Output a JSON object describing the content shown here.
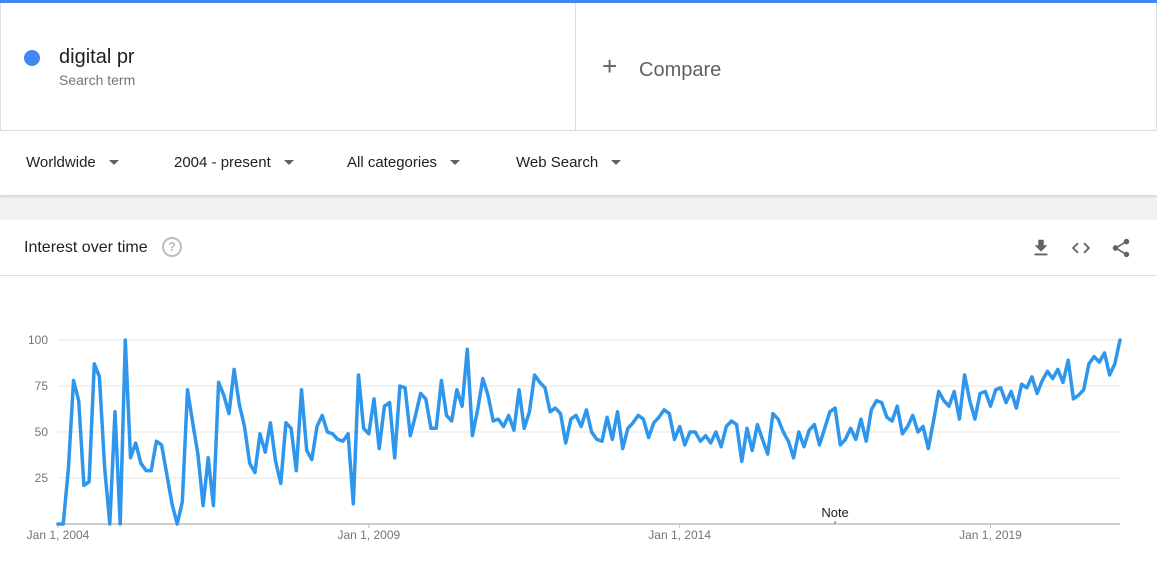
{
  "search_term": {
    "name": "digital pr",
    "type_label": "Search term",
    "color": "#4285f4"
  },
  "compare": {
    "label": "Compare",
    "icon": "plus-icon"
  },
  "filters": {
    "region": "Worldwide",
    "time": "2004 - present",
    "category": "All categories",
    "property": "Web Search"
  },
  "card": {
    "title": "Interest over time",
    "help_icon": "help-icon",
    "actions": [
      "download-icon",
      "embed-icon",
      "share-icon"
    ]
  },
  "chart_data": {
    "type": "line",
    "title": "Interest over time",
    "xlabel": "",
    "ylabel": "",
    "ylim": [
      0,
      100
    ],
    "yticks": [
      25,
      50,
      75,
      100
    ],
    "grid": true,
    "note_label": "Note",
    "note_date": "2016.5",
    "xticks": [
      {
        "label": "Jan 1, 2004",
        "value": 2004
      },
      {
        "label": "Jan 1, 2009",
        "value": 2009
      },
      {
        "label": "Jan 1, 2014",
        "value": 2014
      },
      {
        "label": "Jan 1, 2019",
        "value": 2019
      }
    ],
    "x_start": "2004-01",
    "x_step": "month",
    "series": [
      {
        "name": "digital pr",
        "color": "#2e96ec",
        "values": [
          0,
          0,
          30,
          78,
          67,
          21,
          23,
          87,
          80,
          31,
          0,
          61,
          0,
          100,
          36,
          44,
          33,
          29,
          29,
          45,
          43,
          27,
          11,
          0,
          12,
          73,
          55,
          38,
          10,
          36,
          10,
          77,
          70,
          60,
          84,
          65,
          53,
          33,
          28,
          49,
          39,
          55,
          34,
          22,
          55,
          52,
          29,
          73,
          40,
          35,
          53,
          59,
          50,
          49,
          46,
          45,
          49,
          11,
          81,
          52,
          49,
          68,
          41,
          64,
          66,
          36,
          75,
          74,
          48,
          59,
          71,
          68,
          52,
          52,
          78,
          59,
          56,
          73,
          64,
          95,
          48,
          62,
          79,
          70,
          56,
          57,
          53,
          59,
          51,
          73,
          52,
          61,
          81,
          77,
          74,
          61,
          63,
          60,
          44,
          57,
          59,
          53,
          62,
          50,
          46,
          45,
          58,
          46,
          61,
          41,
          52,
          55,
          59,
          57,
          47,
          55,
          58,
          62,
          60,
          46,
          53,
          43,
          50,
          50,
          45,
          48,
          44,
          50,
          42,
          53,
          56,
          54,
          34,
          52,
          40,
          54,
          46,
          38,
          60,
          57,
          50,
          45,
          36,
          50,
          42,
          51,
          54,
          43,
          52,
          61,
          63,
          43,
          46,
          52,
          46,
          57,
          45,
          62,
          67,
          66,
          58,
          56,
          64,
          49,
          53,
          59,
          50,
          53,
          41,
          56,
          72,
          67,
          64,
          72,
          57,
          81,
          67,
          57,
          71,
          72,
          64,
          73,
          74,
          66,
          72,
          63,
          76,
          74,
          80,
          71,
          78,
          83,
          79,
          84,
          77,
          89,
          68,
          70,
          73,
          87,
          91,
          88,
          93,
          81,
          87,
          100
        ]
      }
    ]
  }
}
